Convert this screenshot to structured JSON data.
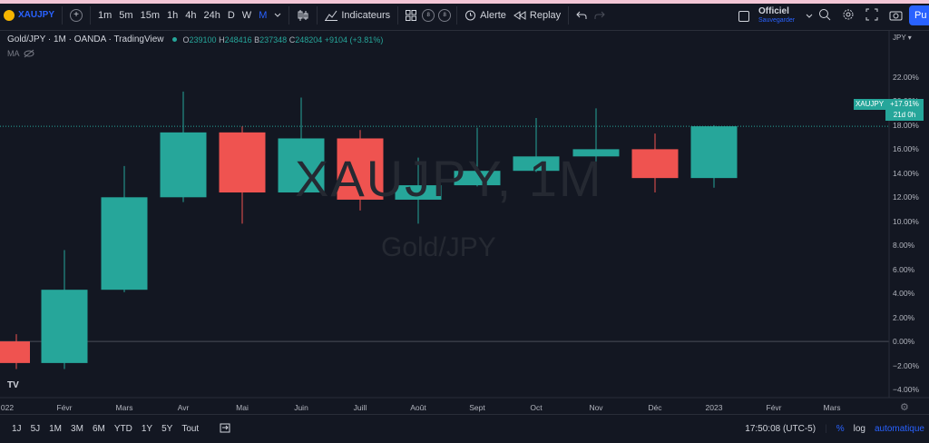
{
  "toolbar": {
    "symbol": "XAUJPY",
    "intervals": [
      "1m",
      "5m",
      "15m",
      "1h",
      "4h",
      "24h",
      "D",
      "W",
      "M"
    ],
    "active_interval": "M",
    "indicators_label": "Indicateurs",
    "badge_a": "8",
    "badge_b": "8",
    "alert_label": "Alerte",
    "replay_label": "Replay",
    "layout_title": "Officiel",
    "layout_status": "Sauvegarder",
    "publish_label": "Pu"
  },
  "legend": {
    "title": "Gold/JPY · 1M · OANDA · TradingView",
    "o_key": "O",
    "o": "239100",
    "h_key": "H",
    "h": "248416",
    "b_key": "B",
    "b": "237348",
    "c_key": "C",
    "c": "248204",
    "change": "+9104 (+3.81%)",
    "ma_label": "MA"
  },
  "watermark": {
    "line1": "XAUJPY, 1M",
    "line2": "Gold/JPY"
  },
  "price_axis": {
    "currency": "JPY",
    "labels": [
      "22.00%",
      "20.00%",
      "18.00%",
      "16.00%",
      "14.00%",
      "12.00%",
      "10.00%",
      "8.00%",
      "6.00%",
      "4.00%",
      "2.00%",
      "0.00%",
      "−2.00%",
      "−4.00%"
    ],
    "tag_symbol": "XAUJPY",
    "tag_value": "+17.91%",
    "tag_time": "21d 0h"
  },
  "time_axis": [
    "022",
    "Févr",
    "Mars",
    "Avr",
    "Mai",
    "Juin",
    "Juill",
    "Août",
    "Sept",
    "Oct",
    "Nov",
    "Déc",
    "2023",
    "Févr",
    "Mars"
  ],
  "chart_data": {
    "type": "candlestick",
    "y_unit": "%",
    "ylim": [
      -4.5,
      22.5
    ],
    "up_color": "#26a69a",
    "down_color": "#ef5350",
    "candles": [
      {
        "x": "Janv",
        "open": 0.0,
        "high": 0.6,
        "low": -2.3,
        "close": -1.8
      },
      {
        "x": "Févr",
        "open": -1.8,
        "high": 7.6,
        "low": -2.3,
        "close": 4.3
      },
      {
        "x": "Mars",
        "open": 4.3,
        "high": 14.6,
        "low": 4.1,
        "close": 12.0
      },
      {
        "x": "Avr",
        "open": 12.0,
        "high": 20.8,
        "low": 11.6,
        "close": 17.4
      },
      {
        "x": "Mai",
        "open": 17.4,
        "high": 17.9,
        "low": 9.8,
        "close": 12.4
      },
      {
        "x": "Juin",
        "open": 12.4,
        "high": 20.3,
        "low": 12.2,
        "close": 16.9
      },
      {
        "x": "Juill",
        "open": 16.9,
        "high": 17.6,
        "low": 10.9,
        "close": 11.8
      },
      {
        "x": "Août",
        "open": 11.8,
        "high": 15.3,
        "low": 9.8,
        "close": 13.0
      },
      {
        "x": "Sept",
        "open": 13.0,
        "high": 17.8,
        "low": 12.9,
        "close": 14.2
      },
      {
        "x": "Oct",
        "open": 14.2,
        "high": 18.6,
        "low": 14.1,
        "close": 15.4
      },
      {
        "x": "Nov",
        "open": 15.4,
        "high": 19.4,
        "low": 13.8,
        "close": 16.0
      },
      {
        "x": "Déc",
        "open": 16.0,
        "high": 17.3,
        "low": 12.4,
        "close": 13.6
      },
      {
        "x": "Janv 2023",
        "open": 13.6,
        "high": 18.0,
        "low": 12.8,
        "close": 17.91
      }
    ]
  },
  "bottom": {
    "ranges": [
      "1J",
      "5J",
      "1M",
      "3M",
      "6M",
      "YTD",
      "1Y",
      "5Y",
      "Tout"
    ],
    "clock": "17:50:08 (UTC-5)",
    "percent": "%",
    "log": "log",
    "auto": "automatique"
  }
}
